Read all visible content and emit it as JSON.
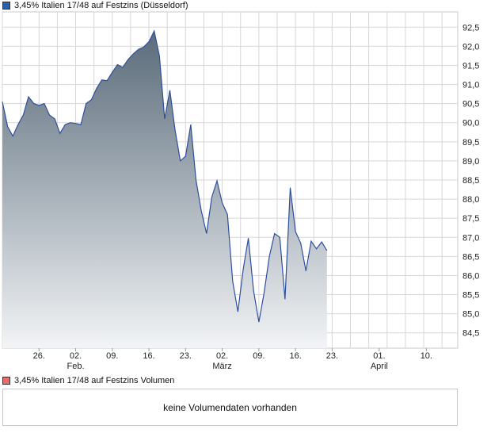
{
  "colors": {
    "price_series": "#2d4fa0",
    "price_swatch": "#2b5fb0",
    "volume_swatch": "#e07070",
    "gradient_top": "#5a6b7a",
    "gradient_bottom": "#f2f4f6",
    "grid": "#d7d7d7"
  },
  "legend": {
    "price": "3,45% Italien 17/48 auf Festzins (Düsseldorf)",
    "volume": "3,45% Italien 17/48 auf Festzins Volumen"
  },
  "volume_panel": {
    "message": "keine Volumendaten vorhanden"
  },
  "chart_data": {
    "type": "area",
    "ylim": [
      84.1,
      92.9
    ],
    "yticks": [
      84.5,
      85.0,
      85.5,
      86.0,
      86.5,
      87.0,
      87.5,
      88.0,
      88.5,
      89.0,
      89.5,
      90.0,
      90.5,
      91.0,
      91.5,
      92.0,
      92.5
    ],
    "ytick_labels": [
      "84,5",
      "85,0",
      "85,5",
      "86,0",
      "86,5",
      "87,0",
      "87,5",
      "88,0",
      "88,5",
      "89,0",
      "89,5",
      "90,0",
      "90,5",
      "91,0",
      "91,5",
      "92,0",
      "92,5"
    ],
    "xlim": [
      "2018-01-19",
      "2018-04-16"
    ],
    "xticks": [
      {
        "date": "2018-01-26",
        "label": "26.",
        "month": ""
      },
      {
        "date": "2018-02-02",
        "label": "02.",
        "month": "Feb."
      },
      {
        "date": "2018-02-09",
        "label": "09.",
        "month": ""
      },
      {
        "date": "2018-02-16",
        "label": "16.",
        "month": ""
      },
      {
        "date": "2018-02-23",
        "label": "23.",
        "month": ""
      },
      {
        "date": "2018-03-02",
        "label": "02.",
        "month": "März"
      },
      {
        "date": "2018-03-09",
        "label": "09.",
        "month": ""
      },
      {
        "date": "2018-03-16",
        "label": "16.",
        "month": ""
      },
      {
        "date": "2018-03-23",
        "label": "23.",
        "month": ""
      },
      {
        "date": "2018-04-01",
        "label": "01.",
        "month": "April"
      },
      {
        "date": "2018-04-10",
        "label": "10.",
        "month": ""
      }
    ],
    "grid": true,
    "series": [
      {
        "points": [
          [
            "2018-01-19",
            90.55
          ],
          [
            "2018-01-20",
            89.9
          ],
          [
            "2018-01-21",
            89.65
          ],
          [
            "2018-01-22",
            89.95
          ],
          [
            "2018-01-23",
            90.2
          ],
          [
            "2018-01-24",
            90.68
          ],
          [
            "2018-01-25",
            90.5
          ],
          [
            "2018-01-26",
            90.45
          ],
          [
            "2018-01-27",
            90.5
          ],
          [
            "2018-01-28",
            90.2
          ],
          [
            "2018-01-29",
            90.1
          ],
          [
            "2018-01-30",
            89.72
          ],
          [
            "2018-01-31",
            89.95
          ],
          [
            "2018-02-01",
            90.0
          ],
          [
            "2018-02-02",
            89.98
          ],
          [
            "2018-02-03",
            89.95
          ],
          [
            "2018-02-04",
            90.5
          ],
          [
            "2018-02-05",
            90.6
          ],
          [
            "2018-02-06",
            90.9
          ],
          [
            "2018-02-07",
            91.12
          ],
          [
            "2018-02-08",
            91.1
          ],
          [
            "2018-02-09",
            91.32
          ],
          [
            "2018-02-10",
            91.52
          ],
          [
            "2018-02-11",
            91.45
          ],
          [
            "2018-02-12",
            91.65
          ],
          [
            "2018-02-13",
            91.8
          ],
          [
            "2018-02-14",
            91.92
          ],
          [
            "2018-02-15",
            91.98
          ],
          [
            "2018-02-16",
            92.12
          ],
          [
            "2018-02-17",
            92.4
          ],
          [
            "2018-02-18",
            91.75
          ],
          [
            "2018-02-19",
            90.1
          ],
          [
            "2018-02-20",
            90.85
          ],
          [
            "2018-02-21",
            89.8
          ],
          [
            "2018-02-22",
            89.0
          ],
          [
            "2018-02-23",
            89.12
          ],
          [
            "2018-02-24",
            89.95
          ],
          [
            "2018-02-25",
            88.5
          ],
          [
            "2018-02-26",
            87.7
          ],
          [
            "2018-02-27",
            87.1
          ],
          [
            "2018-02-28",
            88.05
          ],
          [
            "2018-03-01",
            88.48
          ],
          [
            "2018-03-02",
            87.9
          ],
          [
            "2018-03-03",
            87.6
          ],
          [
            "2018-03-04",
            85.85
          ],
          [
            "2018-03-05",
            85.05
          ],
          [
            "2018-03-06",
            86.15
          ],
          [
            "2018-03-07",
            86.98
          ],
          [
            "2018-03-08",
            85.6
          ],
          [
            "2018-03-09",
            84.78
          ],
          [
            "2018-03-10",
            85.55
          ],
          [
            "2018-03-11",
            86.5
          ],
          [
            "2018-03-12",
            87.1
          ],
          [
            "2018-03-13",
            87.0
          ],
          [
            "2018-03-14",
            85.38
          ],
          [
            "2018-03-15",
            88.3
          ],
          [
            "2018-03-16",
            87.15
          ],
          [
            "2018-03-17",
            86.85
          ],
          [
            "2018-03-18",
            86.12
          ],
          [
            "2018-03-19",
            86.9
          ],
          [
            "2018-03-20",
            86.7
          ],
          [
            "2018-03-21",
            86.88
          ],
          [
            "2018-03-22",
            86.65
          ]
        ]
      }
    ]
  }
}
